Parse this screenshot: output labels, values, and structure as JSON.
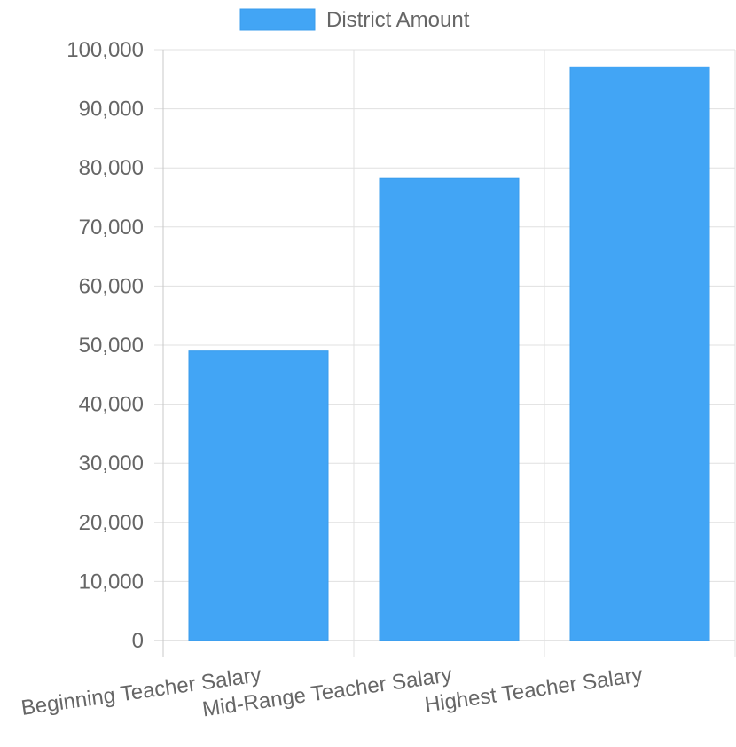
{
  "chart_data": {
    "type": "bar",
    "categories": [
      "Beginning Teacher Salary",
      "Mid-Range Teacher Salary",
      "Highest Teacher Salary"
    ],
    "series": [
      {
        "name": "District Amount",
        "values": [
          49000,
          78200,
          97100
        ],
        "color": "#42a5f5"
      }
    ],
    "y_ticks": [
      "0",
      "10,000",
      "20,000",
      "30,000",
      "40,000",
      "50,000",
      "60,000",
      "70,000",
      "80,000",
      "90,000",
      "100,000"
    ],
    "ylim": [
      0,
      100000
    ],
    "grid": true,
    "legend_position": "top-center",
    "x_label_rotation_deg": -8
  }
}
